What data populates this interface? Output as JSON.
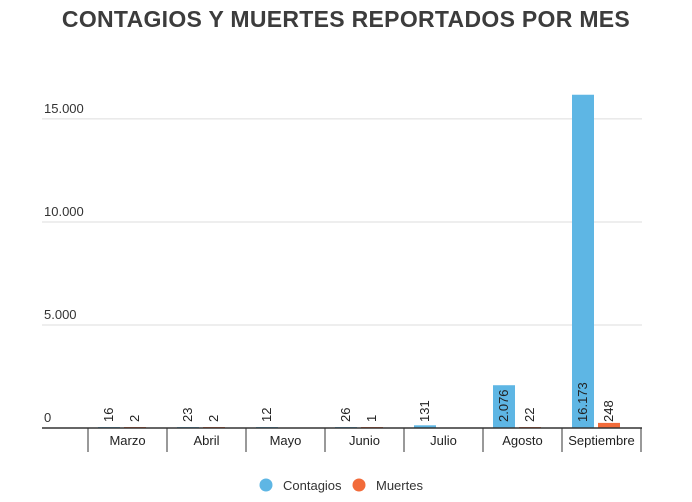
{
  "chart_data": {
    "type": "bar",
    "title": "CONTAGIOS Y MUERTES REPORTADOS POR MES",
    "categories": [
      "Marzo",
      "Abril",
      "Mayo",
      "Junio",
      "Julio",
      "Agosto",
      "Septiembre"
    ],
    "series": [
      {
        "name": "Contagios",
        "color": "#5eb6e4",
        "values": [
          16,
          23,
          12,
          26,
          131,
          2076,
          16173
        ],
        "labels": [
          "16",
          "23",
          "12",
          "26",
          "131",
          "2.076",
          "16.173"
        ]
      },
      {
        "name": "Muertes",
        "color": "#f26b3a",
        "values": [
          2,
          2,
          null,
          1,
          null,
          22,
          248
        ],
        "labels": [
          "2",
          "2",
          "",
          "1",
          "",
          "22",
          "248"
        ]
      }
    ],
    "ylim": [
      0,
      16500
    ],
    "yticks": [
      0,
      5000,
      10000,
      15000
    ],
    "ytick_labels": [
      "0",
      "5.000",
      "10.000",
      "15.000"
    ],
    "grid": true,
    "legend": "bottom-center"
  }
}
